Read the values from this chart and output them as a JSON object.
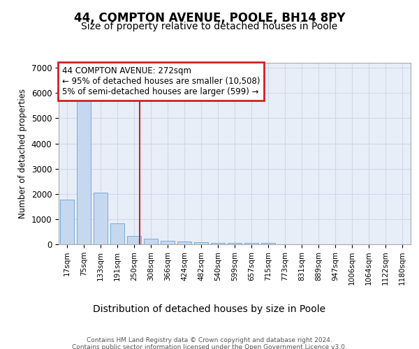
{
  "title1": "44, COMPTON AVENUE, POOLE, BH14 8PY",
  "title2": "Size of property relative to detached houses in Poole",
  "xlabel": "Distribution of detached houses by size in Poole",
  "ylabel": "Number of detached properties",
  "categories": [
    "17sqm",
    "75sqm",
    "133sqm",
    "191sqm",
    "250sqm",
    "308sqm",
    "366sqm",
    "424sqm",
    "482sqm",
    "540sqm",
    "599sqm",
    "657sqm",
    "715sqm",
    "773sqm",
    "831sqm",
    "889sqm",
    "947sqm",
    "1006sqm",
    "1064sqm",
    "1122sqm",
    "1180sqm"
  ],
  "values": [
    1780,
    5780,
    2060,
    820,
    330,
    230,
    140,
    110,
    85,
    65,
    65,
    65,
    65,
    0,
    0,
    0,
    0,
    0,
    0,
    0,
    0
  ],
  "bar_color": "#c5d8f0",
  "bar_edge_color": "#7aaad4",
  "vline_x": 4.35,
  "vline_color": "#cc2222",
  "annotation_line1": "44 COMPTON AVENUE: 272sqm",
  "annotation_line2": "← 95% of detached houses are smaller (10,508)",
  "annotation_line3": "5% of semi-detached houses are larger (599) →",
  "annotation_box_color": "#cc2222",
  "ylim": [
    0,
    7200
  ],
  "yticks": [
    0,
    1000,
    2000,
    3000,
    4000,
    5000,
    6000,
    7000
  ],
  "grid_color": "#d0d8e8",
  "bg_color": "#e8eef8",
  "footer_text": "Contains HM Land Registry data © Crown copyright and database right 2024.\nContains public sector information licensed under the Open Government Licence v3.0.",
  "title1_fontsize": 12,
  "title2_fontsize": 10,
  "xlabel_fontsize": 10,
  "ylabel_fontsize": 8.5
}
